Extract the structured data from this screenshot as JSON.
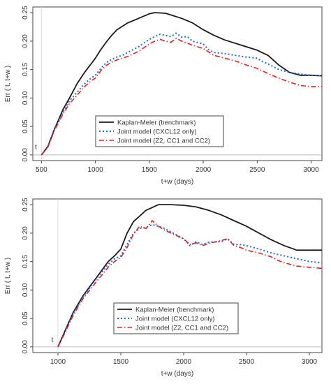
{
  "chart_data": [
    {
      "type": "line",
      "xlabel": "t+w (days)",
      "ylabel": "Err ( t, t+w )",
      "xlim": [
        420,
        3100
      ],
      "ylim": [
        -0.01,
        0.26
      ],
      "x_ticks": [
        "500",
        "1000",
        "1500",
        "2000",
        "2500",
        "3000"
      ],
      "y_ticks": [
        "0.00",
        "0.05",
        "0.10",
        "0.15",
        "0.20",
        "0.25"
      ],
      "baseline_t": 500,
      "t_marker": "t",
      "legend_position": "center",
      "grid": false,
      "series": [
        {
          "name": "Kaplan-Meier (benchmark)",
          "color": "#1a1a1a",
          "dash": "solid",
          "points": [
            [
              500,
              0
            ],
            [
              560,
              0.015
            ],
            [
              620,
              0.045
            ],
            [
              700,
              0.08
            ],
            [
              760,
              0.1
            ],
            [
              830,
              0.125
            ],
            [
              900,
              0.145
            ],
            [
              960,
              0.16
            ],
            [
              1000,
              0.17
            ],
            [
              1050,
              0.185
            ],
            [
              1100,
              0.198
            ],
            [
              1150,
              0.21
            ],
            [
              1200,
              0.22
            ],
            [
              1300,
              0.232
            ],
            [
              1400,
              0.24
            ],
            [
              1500,
              0.248
            ],
            [
              1550,
              0.25
            ],
            [
              1650,
              0.249
            ],
            [
              1700,
              0.246
            ],
            [
              1800,
              0.24
            ],
            [
              1900,
              0.232
            ],
            [
              2000,
              0.22
            ],
            [
              2100,
              0.21
            ],
            [
              2200,
              0.202
            ],
            [
              2300,
              0.196
            ],
            [
              2400,
              0.19
            ],
            [
              2500,
              0.184
            ],
            [
              2600,
              0.175
            ],
            [
              2700,
              0.158
            ],
            [
              2800,
              0.145
            ],
            [
              2900,
              0.14
            ],
            [
              3000,
              0.14
            ],
            [
              3100,
              0.139
            ]
          ]
        },
        {
          "name": "Joint model (CXCL12 only)",
          "color": "#2266dd",
          "dash": "dotted",
          "points": [
            [
              500,
              0
            ],
            [
              560,
              0.014
            ],
            [
              620,
              0.044
            ],
            [
              700,
              0.075
            ],
            [
              760,
              0.095
            ],
            [
              830,
              0.11
            ],
            [
              900,
              0.125
            ],
            [
              960,
              0.135
            ],
            [
              1000,
              0.14
            ],
            [
              1050,
              0.152
            ],
            [
              1100,
              0.162
            ],
            [
              1150,
              0.168
            ],
            [
              1200,
              0.172
            ],
            [
              1250,
              0.175
            ],
            [
              1300,
              0.18
            ],
            [
              1400,
              0.19
            ],
            [
              1500,
              0.203
            ],
            [
              1550,
              0.208
            ],
            [
              1600,
              0.212
            ],
            [
              1650,
              0.21
            ],
            [
              1700,
              0.208
            ],
            [
              1750,
              0.214
            ],
            [
              1800,
              0.207
            ],
            [
              1850,
              0.208
            ],
            [
              1900,
              0.2
            ],
            [
              2000,
              0.195
            ],
            [
              2050,
              0.185
            ],
            [
              2100,
              0.18
            ],
            [
              2200,
              0.178
            ],
            [
              2300,
              0.175
            ],
            [
              2400,
              0.172
            ],
            [
              2500,
              0.17
            ],
            [
              2550,
              0.164
            ],
            [
              2600,
              0.16
            ],
            [
              2700,
              0.15
            ],
            [
              2800,
              0.145
            ],
            [
              2900,
              0.142
            ],
            [
              3000,
              0.14
            ],
            [
              3100,
              0.139
            ]
          ]
        },
        {
          "name": "Joint model (Z2, CC1 and CC2)",
          "color": "#e02020",
          "dash": "dashdot",
          "points": [
            [
              500,
              0
            ],
            [
              560,
              0.014
            ],
            [
              620,
              0.043
            ],
            [
              700,
              0.072
            ],
            [
              760,
              0.09
            ],
            [
              830,
              0.105
            ],
            [
              900,
              0.12
            ],
            [
              960,
              0.13
            ],
            [
              1000,
              0.135
            ],
            [
              1050,
              0.148
            ],
            [
              1100,
              0.157
            ],
            [
              1150,
              0.163
            ],
            [
              1200,
              0.167
            ],
            [
              1300,
              0.173
            ],
            [
              1400,
              0.182
            ],
            [
              1500,
              0.195
            ],
            [
              1550,
              0.2
            ],
            [
              1600,
              0.203
            ],
            [
              1650,
              0.2
            ],
            [
              1700,
              0.198
            ],
            [
              1750,
              0.205
            ],
            [
              1800,
              0.2
            ],
            [
              1900,
              0.193
            ],
            [
              2000,
              0.187
            ],
            [
              2100,
              0.175
            ],
            [
              2200,
              0.17
            ],
            [
              2300,
              0.165
            ],
            [
              2400,
              0.158
            ],
            [
              2500,
              0.152
            ],
            [
              2600,
              0.143
            ],
            [
              2700,
              0.135
            ],
            [
              2800,
              0.128
            ],
            [
              2900,
              0.122
            ],
            [
              3000,
              0.12
            ],
            [
              3100,
              0.12
            ]
          ]
        }
      ]
    },
    {
      "type": "line",
      "xlabel": "t+w (days)",
      "ylabel": "Err ( t, t+w )",
      "xlim": [
        800,
        3100
      ],
      "ylim": [
        -0.01,
        0.26
      ],
      "x_ticks": [
        "1000",
        "1500",
        "2000",
        "2500",
        "3000"
      ],
      "y_ticks": [
        "0.00",
        "0.05",
        "0.10",
        "0.15",
        "0.20",
        "0.25"
      ],
      "baseline_t": 1000,
      "t_marker": "t",
      "legend_position": "bottom-center",
      "grid": false,
      "series": [
        {
          "name": "Kaplan-Meier (benchmark)",
          "color": "#1a1a1a",
          "dash": "solid",
          "points": [
            [
              1000,
              0
            ],
            [
              1060,
              0.03
            ],
            [
              1120,
              0.06
            ],
            [
              1200,
              0.09
            ],
            [
              1300,
              0.12
            ],
            [
              1400,
              0.15
            ],
            [
              1450,
              0.16
            ],
            [
              1500,
              0.172
            ],
            [
              1550,
              0.2
            ],
            [
              1600,
              0.22
            ],
            [
              1700,
              0.24
            ],
            [
              1800,
              0.25
            ],
            [
              1900,
              0.25
            ],
            [
              2000,
              0.249
            ],
            [
              2100,
              0.246
            ],
            [
              2200,
              0.24
            ],
            [
              2300,
              0.232
            ],
            [
              2400,
              0.222
            ],
            [
              2500,
              0.212
            ],
            [
              2600,
              0.2
            ],
            [
              2700,
              0.188
            ],
            [
              2800,
              0.178
            ],
            [
              2900,
              0.17
            ],
            [
              3000,
              0.17
            ],
            [
              3100,
              0.17
            ]
          ]
        },
        {
          "name": "Joint model (CXCL12 only)",
          "color": "#2266dd",
          "dash": "dotted",
          "points": [
            [
              1000,
              0
            ],
            [
              1060,
              0.028
            ],
            [
              1120,
              0.058
            ],
            [
              1200,
              0.088
            ],
            [
              1300,
              0.118
            ],
            [
              1400,
              0.145
            ],
            [
              1450,
              0.155
            ],
            [
              1500,
              0.16
            ],
            [
              1550,
              0.18
            ],
            [
              1600,
              0.2
            ],
            [
              1650,
              0.208
            ],
            [
              1700,
              0.21
            ],
            [
              1750,
              0.215
            ],
            [
              1800,
              0.212
            ],
            [
              1850,
              0.208
            ],
            [
              1900,
              0.202
            ],
            [
              1950,
              0.196
            ],
            [
              2000,
              0.19
            ],
            [
              2050,
              0.178
            ],
            [
              2100,
              0.185
            ],
            [
              2150,
              0.18
            ],
            [
              2200,
              0.184
            ],
            [
              2300,
              0.185
            ],
            [
              2350,
              0.19
            ],
            [
              2400,
              0.18
            ],
            [
              2450,
              0.18
            ],
            [
              2500,
              0.178
            ],
            [
              2600,
              0.172
            ],
            [
              2700,
              0.165
            ],
            [
              2800,
              0.16
            ],
            [
              2900,
              0.155
            ],
            [
              3000,
              0.15
            ],
            [
              3100,
              0.148
            ]
          ]
        },
        {
          "name": "Joint model (Z2, CC1 and CC2)",
          "color": "#e02020",
          "dash": "dashdot",
          "points": [
            [
              1000,
              0
            ],
            [
              1060,
              0.027
            ],
            [
              1120,
              0.055
            ],
            [
              1200,
              0.085
            ],
            [
              1300,
              0.113
            ],
            [
              1400,
              0.14
            ],
            [
              1450,
              0.15
            ],
            [
              1500,
              0.157
            ],
            [
              1550,
              0.175
            ],
            [
              1600,
              0.198
            ],
            [
              1650,
              0.212
            ],
            [
              1700,
              0.208
            ],
            [
              1750,
              0.222
            ],
            [
              1800,
              0.212
            ],
            [
              1850,
              0.205
            ],
            [
              1900,
              0.2
            ],
            [
              1950,
              0.195
            ],
            [
              2000,
              0.19
            ],
            [
              2050,
              0.18
            ],
            [
              2100,
              0.183
            ],
            [
              2150,
              0.178
            ],
            [
              2200,
              0.182
            ],
            [
              2300,
              0.187
            ],
            [
              2350,
              0.19
            ],
            [
              2400,
              0.178
            ],
            [
              2450,
              0.175
            ],
            [
              2500,
              0.17
            ],
            [
              2600,
              0.165
            ],
            [
              2700,
              0.158
            ],
            [
              2750,
              0.152
            ],
            [
              2800,
              0.148
            ],
            [
              2900,
              0.142
            ],
            [
              3000,
              0.14
            ],
            [
              3100,
              0.138
            ]
          ]
        }
      ]
    }
  ]
}
